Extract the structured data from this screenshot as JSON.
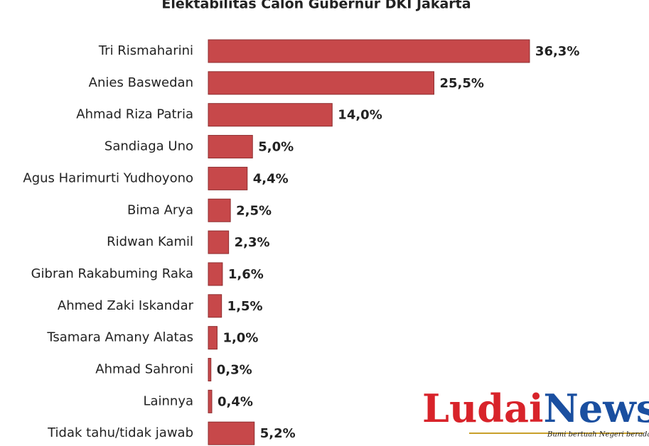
{
  "chart_data": {
    "type": "hbar",
    "title": "Elektabilitas Calon Gubernur DKI Jakarta",
    "categories": [
      "Tri Rismaharini",
      "Anies Baswedan",
      "Ahmad Riza Patria",
      "Sandiaga Uno",
      "Agus Harimurti Yudhoyono",
      "Bima Arya",
      "Ridwan Kamil",
      "Gibran Rakabuming Raka",
      "Ahmed Zaki Iskandar",
      "Tsamara Amany Alatas",
      "Ahmad Sahroni",
      "Lainnya",
      "Tidak tahu/tidak jawab"
    ],
    "values": [
      36.3,
      25.5,
      14.0,
      5.0,
      4.4,
      2.5,
      2.3,
      1.6,
      1.5,
      1.0,
      0.3,
      0.4,
      5.2
    ],
    "value_labels": [
      "36,3%",
      "25,5%",
      "14,0%",
      "5,0%",
      "4,4%",
      "2,5%",
      "2,3%",
      "1,6%",
      "1,5%",
      "1,0%",
      "0,3%",
      "0,4%",
      "5,2%"
    ],
    "color": "#c7484a"
  },
  "watermark": {
    "name_parts": [
      "Ludai",
      "News"
    ],
    "tagline": "Bumi bertuah Negeri beradat"
  }
}
